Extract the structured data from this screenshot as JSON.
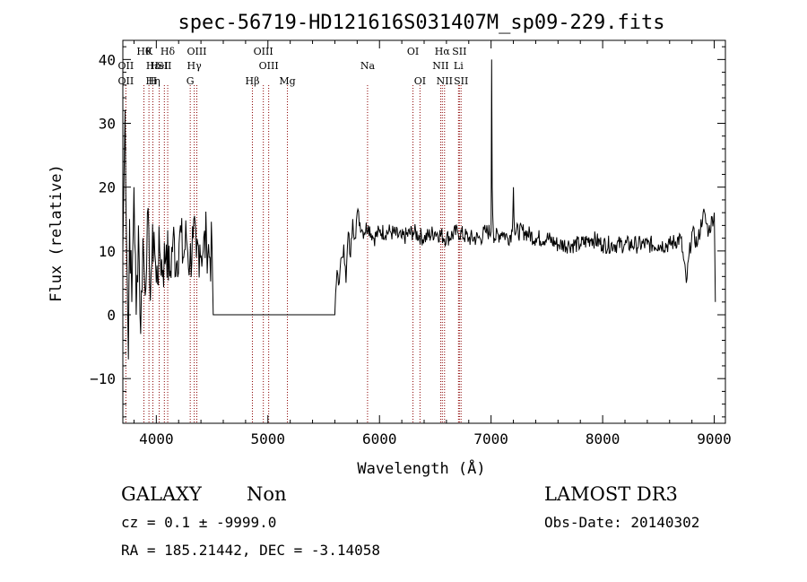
{
  "chart_data": {
    "type": "line",
    "title": "spec-56719-HD121616S031407M_sp09-229.fits",
    "xlabel": "Wavelength (Å)",
    "ylabel": "Flux (relative)",
    "xlim": [
      3700,
      9100
    ],
    "ylim": [
      -17,
      43
    ],
    "xticks": [
      4000,
      5000,
      6000,
      7000,
      8000,
      9000
    ],
    "yticks": [
      -10,
      0,
      10,
      20,
      30,
      40
    ],
    "grid": false,
    "line_color": "#000000",
    "marker_color": "#8b0000",
    "series": [
      {
        "x": [
          3700,
          3720,
          3740,
          3750,
          3760,
          3780,
          3800,
          3820,
          3840,
          3860,
          3880,
          3900,
          3920,
          3940,
          3960,
          3980,
          4000,
          4030,
          4060,
          4090,
          4120,
          4150,
          4180,
          4210,
          4240,
          4270,
          4300,
          4330,
          4360,
          4390,
          4420,
          4450,
          4480,
          4500,
          4510,
          5600,
          5620,
          5640,
          5660,
          5680,
          5700,
          5720,
          5740,
          5760,
          5780,
          5800,
          5850,
          5900,
          5950,
          6000,
          6100,
          6200,
          6300,
          6400,
          6500,
          6600,
          6700,
          6800,
          6900,
          6950,
          7000,
          7005,
          7010,
          7020,
          7030,
          7100,
          7150,
          7190,
          7200,
          7210,
          7300,
          7400,
          7500,
          7600,
          7700,
          7800,
          7900,
          8000,
          8100,
          8200,
          8300,
          8400,
          8500,
          8600,
          8700,
          8750,
          8800,
          8850,
          8900,
          8950,
          9000,
          9010
        ],
        "y": [
          10,
          32,
          5,
          -7,
          15,
          2,
          20,
          0,
          14,
          -3,
          12,
          3,
          16,
          5,
          8,
          13,
          5,
          10,
          7,
          11,
          6,
          12,
          8,
          13,
          9,
          12,
          8,
          12,
          9,
          11,
          10,
          12,
          9,
          10,
          0,
          0,
          7,
          5,
          9,
          11,
          5,
          13,
          9,
          15,
          12,
          16,
          13,
          14,
          12,
          13,
          13,
          12,
          13,
          12,
          13,
          12,
          13,
          12,
          12,
          13,
          13,
          40,
          20,
          13,
          12,
          13,
          12,
          13,
          20,
          13,
          13,
          12,
          12,
          11,
          11,
          11,
          12,
          11,
          11,
          11,
          11,
          11,
          11,
          11,
          12,
          5,
          13,
          11,
          16,
          13,
          16,
          2
        ]
      }
    ],
    "line_markers": [
      {
        "wavelength": 3727,
        "label": "OII",
        "row": 2
      },
      {
        "wavelength": 3727,
        "label": "OII",
        "row": 3
      },
      {
        "wavelength": 3889,
        "label": "Hθ",
        "row": 1
      },
      {
        "wavelength": 3969,
        "label": "Hε",
        "row": 2
      },
      {
        "wavelength": 3970,
        "label": "Hη",
        "row": 3
      },
      {
        "wavelength": 3934,
        "label": "K",
        "row": 1
      },
      {
        "wavelength": 4026,
        "label": "HeI",
        "row": 2
      },
      {
        "wavelength": 3968,
        "label": "H",
        "row": 3
      },
      {
        "wavelength": 4102,
        "label": "Hδ",
        "row": 1
      },
      {
        "wavelength": 4072,
        "label": "SII",
        "row": 2
      },
      {
        "wavelength": 4363,
        "label": "OIII",
        "row": 1
      },
      {
        "wavelength": 4340,
        "label": "Hγ",
        "row": 2
      },
      {
        "wavelength": 4304,
        "label": "G",
        "row": 3
      },
      {
        "wavelength": 4861,
        "label": "Hβ",
        "row": 3
      },
      {
        "wavelength": 4959,
        "label": "OIII",
        "row": 1
      },
      {
        "wavelength": 5007,
        "label": "OIII",
        "row": 2
      },
      {
        "wavelength": 5175,
        "label": "Mg",
        "row": 3
      },
      {
        "wavelength": 5893,
        "label": "Na",
        "row": 2
      },
      {
        "wavelength": 6300,
        "label": "OI",
        "row": 1
      },
      {
        "wavelength": 6363,
        "label": "OI",
        "row": 3
      },
      {
        "wavelength": 6563,
        "label": "Hα",
        "row": 1
      },
      {
        "wavelength": 6548,
        "label": "NII",
        "row": 2
      },
      {
        "wavelength": 6583,
        "label": "NII",
        "row": 3
      },
      {
        "wavelength": 6716,
        "label": "SII",
        "row": 1
      },
      {
        "wavelength": 6708,
        "label": "Li",
        "row": 2
      },
      {
        "wavelength": 6731,
        "label": "SII",
        "row": 3
      }
    ],
    "marker_lines": [
      3727,
      3889,
      3934,
      3969,
      4026,
      4072,
      4102,
      4304,
      4340,
      4363,
      4861,
      4959,
      5007,
      5175,
      5893,
      6300,
      6363,
      6548,
      6563,
      6583,
      6708,
      6716,
      6731
    ]
  },
  "footer": {
    "class_label": "GALAXY",
    "subclass_label": "Non",
    "cz_text": "cz = 0.1 ± -9999.0",
    "coords_text": "RA = 185.21442, DEC =  -3.14058",
    "survey": "LAMOST DR3",
    "obs_date": "Obs-Date: 20140302"
  }
}
